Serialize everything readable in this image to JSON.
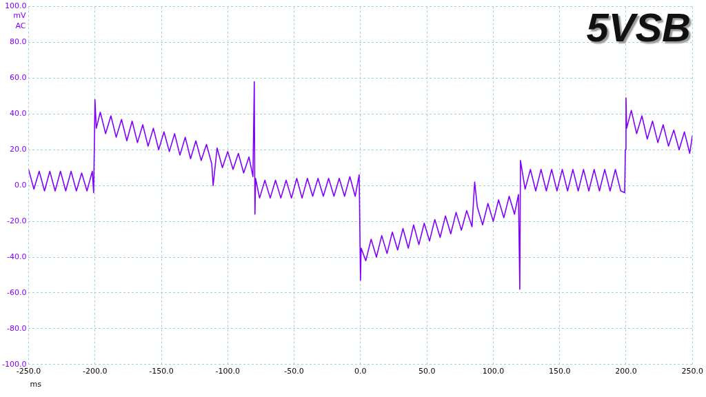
{
  "chart_data": {
    "type": "line",
    "title": "5VSB",
    "xlabel": "ms",
    "ylabel": "mV AC",
    "x": [
      -250,
      -246,
      -242,
      -238,
      -234,
      -230,
      -226,
      -222,
      -218,
      -214,
      -210,
      -206,
      -202,
      -201,
      -200.5,
      -200,
      -199,
      -196,
      -192,
      -188,
      -184,
      -180,
      -176,
      -172,
      -168,
      -164,
      -160,
      -156,
      -152,
      -148,
      -144,
      -140,
      -136,
      -132,
      -128,
      -124,
      -120,
      -116,
      -112,
      -111,
      -108,
      -104,
      -100,
      -96,
      -92,
      -88,
      -84,
      -81,
      -80,
      -79.5,
      -79,
      -76,
      -72,
      -68,
      -64,
      -60,
      -56,
      -52,
      -48,
      -44,
      -40,
      -36,
      -32,
      -28,
      -24,
      -20,
      -16,
      -12,
      -8,
      -4,
      -1,
      0,
      0.5,
      4,
      8,
      12,
      16,
      20,
      24,
      28,
      32,
      36,
      40,
      44,
      48,
      52,
      56,
      60,
      64,
      68,
      72,
      76,
      80,
      84,
      86,
      88,
      92,
      96,
      100,
      104,
      108,
      112,
      116,
      119,
      120,
      120.5,
      124,
      128,
      132,
      136,
      140,
      144,
      148,
      152,
      156,
      160,
      164,
      168,
      172,
      176,
      180,
      184,
      188,
      192,
      196,
      199,
      199.5,
      200,
      200.5,
      204,
      208,
      212,
      216,
      220,
      224,
      228,
      232,
      236,
      240,
      244,
      248,
      250
    ],
    "series": [
      {
        "color": "#8000ff",
        "values": [
          9,
          -2,
          8,
          -3,
          8,
          -3,
          8,
          -3,
          8,
          -3,
          7,
          -3,
          8,
          -4,
          21,
          48,
          32,
          41,
          29,
          39,
          27,
          37,
          25,
          36,
          24,
          34,
          22,
          32,
          20,
          30,
          19,
          29,
          17,
          27,
          15,
          25,
          14,
          23,
          12,
          0,
          21,
          10,
          19,
          9,
          18,
          7,
          16,
          5,
          58,
          -16,
          4,
          -7,
          3,
          -7,
          3,
          -7,
          3,
          -7,
          4,
          -7,
          4,
          -6,
          4,
          -6,
          4,
          -6,
          4,
          -6,
          5,
          -6,
          6,
          -53,
          -35,
          -42,
          -30,
          -40,
          -28,
          -38,
          -26,
          -36,
          -24,
          -35,
          -22,
          -33,
          -21,
          -31,
          -19,
          -29,
          -17,
          -27,
          -15,
          -25,
          -14,
          -23,
          2,
          -12,
          -22,
          -10,
          -20,
          -8,
          -18,
          -6,
          -16,
          -5,
          -58,
          14,
          -2,
          9,
          -3,
          9,
          -3,
          9,
          -3,
          9,
          -3,
          9,
          -3,
          9,
          -3,
          9,
          -3,
          9,
          -3,
          9,
          -3,
          -4,
          20,
          49,
          32,
          42,
          29,
          39,
          26,
          36,
          24,
          34,
          22,
          31,
          20,
          30,
          18,
          28
        ]
      }
    ],
    "xlim": [
      -250,
      250
    ],
    "ylim": [
      -100,
      100
    ],
    "xticks": [
      {
        "value": -250,
        "label": "-250.0"
      },
      {
        "value": -200,
        "label": "-200.0"
      },
      {
        "value": -150,
        "label": "-150.0"
      },
      {
        "value": -100,
        "label": "-100.0"
      },
      {
        "value": -50,
        "label": "-50.0"
      },
      {
        "value": 0,
        "label": "0.0"
      },
      {
        "value": 50,
        "label": "50.0"
      },
      {
        "value": 100,
        "label": "100.0"
      },
      {
        "value": 150,
        "label": "150.0"
      },
      {
        "value": 200,
        "label": "200.0"
      },
      {
        "value": 250,
        "label": "250.0"
      }
    ],
    "yticks": [
      {
        "value": -100,
        "label": "-100.0"
      },
      {
        "value": -80,
        "label": "-80.0"
      },
      {
        "value": -60,
        "label": "-60.0"
      },
      {
        "value": -40,
        "label": "-40.0"
      },
      {
        "value": -20,
        "label": "-20.0"
      },
      {
        "value": 0,
        "label": "0.0"
      },
      {
        "value": 20,
        "label": "20.0"
      },
      {
        "value": 40,
        "label": "40.0"
      },
      {
        "value": 60,
        "label": "60.0"
      },
      {
        "value": 80,
        "label": "80.0"
      },
      {
        "value": 100,
        "label": "100.0"
      }
    ],
    "grid": true,
    "legend": false,
    "marker": "none",
    "line_style": "solid"
  }
}
